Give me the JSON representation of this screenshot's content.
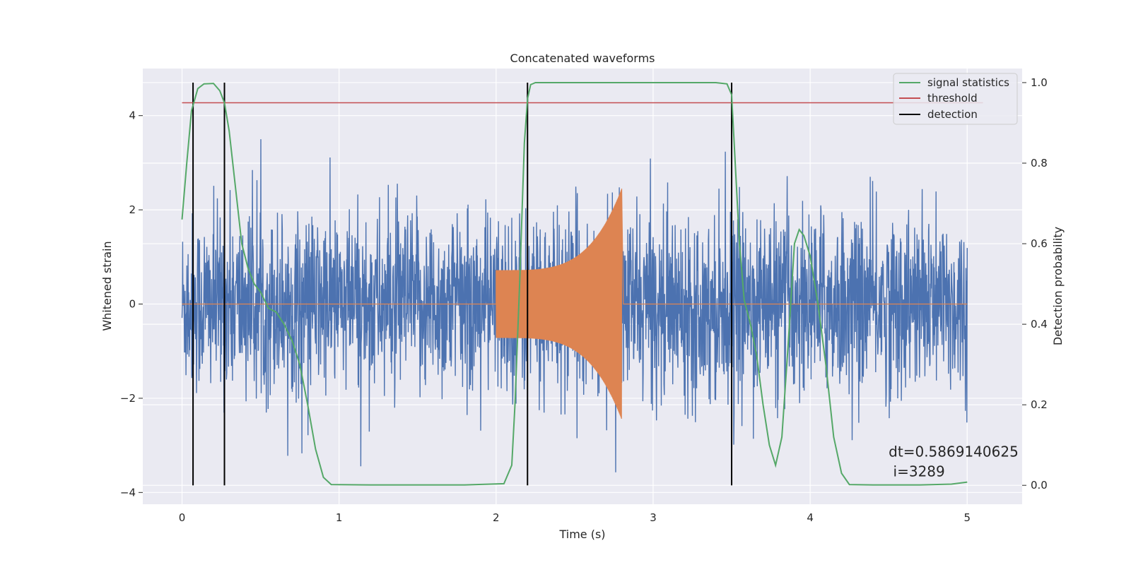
{
  "chart_data": {
    "type": "line",
    "title": "Concatenated waveforms",
    "xlabel": "Time (s)",
    "ylabel": "Whitened strain",
    "y2label": "Detection probability",
    "xlim": [
      -0.25,
      5.35
    ],
    "ylim": [
      -4.25,
      5.0
    ],
    "y2lim": [
      -0.047,
      1.035
    ],
    "x_ticks": [
      0,
      1,
      2,
      3,
      4,
      5
    ],
    "x_tick_labels": [
      "0",
      "1",
      "2",
      "3",
      "4",
      "5"
    ],
    "y_ticks": [
      -4,
      -2,
      0,
      2,
      4
    ],
    "y_tick_labels": [
      "−4",
      "−2",
      "0",
      "2",
      "4"
    ],
    "y2_ticks": [
      0.0,
      0.2,
      0.4,
      0.6,
      0.8,
      1.0
    ],
    "y2_tick_labels": [
      "0.0",
      "0.2",
      "0.4",
      "0.6",
      "0.8",
      "1.0"
    ],
    "grid": true,
    "legend_position": "top-right",
    "colors": {
      "background": "#eaeaf2",
      "grid": "#ffffff",
      "noise": "#4c72b0",
      "injection": "#dd8452",
      "statistics": "#55a868",
      "threshold": "#c44e52",
      "detection": "#000000"
    },
    "series": [
      {
        "name": "",
        "axis": "left",
        "kind": "noise",
        "x_range": [
          0,
          5
        ],
        "approx_envelope": [
          -2.3,
          2.5
        ],
        "approx_extremes": [
          -3.7,
          3.5
        ]
      },
      {
        "name": "",
        "axis": "left",
        "kind": "chirp",
        "x_range": [
          0,
          5
        ],
        "chirp_start": 2.0,
        "chirp_end": 2.8,
        "start_amplitude": 0.72,
        "peak_amplitude": 2.45,
        "peak_negative": -2.45
      },
      {
        "name": "signal statistics",
        "axis": "right",
        "x": [
          0.0,
          0.03,
          0.06,
          0.1,
          0.14,
          0.2,
          0.24,
          0.27,
          0.3,
          0.34,
          0.38,
          0.42,
          0.46,
          0.5,
          0.55,
          0.6,
          0.65,
          0.7,
          0.75,
          0.8,
          0.85,
          0.9,
          0.95,
          1.2,
          1.5,
          1.8,
          2.05,
          2.1,
          2.12,
          2.15,
          2.18,
          2.2,
          2.22,
          2.25,
          2.3,
          2.5,
          3.0,
          3.4,
          3.47,
          3.5,
          3.52,
          3.55,
          3.58,
          3.62,
          3.66,
          3.7,
          3.74,
          3.78,
          3.82,
          3.86,
          3.9,
          3.93,
          3.96,
          4.0,
          4.05,
          4.1,
          4.15,
          4.2,
          4.25,
          4.4,
          4.7,
          4.9,
          5.0
        ],
        "y": [
          0.66,
          0.8,
          0.93,
          0.985,
          0.997,
          0.998,
          0.98,
          0.95,
          0.88,
          0.74,
          0.6,
          0.54,
          0.5,
          0.48,
          0.44,
          0.43,
          0.4,
          0.36,
          0.3,
          0.2,
          0.09,
          0.02,
          0.002,
          0.001,
          0.001,
          0.001,
          0.004,
          0.05,
          0.2,
          0.5,
          0.85,
          0.96,
          0.995,
          1.0,
          1.0,
          1.0,
          1.0,
          1.0,
          0.997,
          0.97,
          0.82,
          0.6,
          0.46,
          0.4,
          0.32,
          0.2,
          0.1,
          0.05,
          0.12,
          0.35,
          0.6,
          0.635,
          0.62,
          0.57,
          0.45,
          0.3,
          0.12,
          0.03,
          0.002,
          0.001,
          0.001,
          0.003,
          0.008
        ]
      },
      {
        "name": "threshold",
        "axis": "right",
        "x": [
          0,
          5.1
        ],
        "y": [
          0.95,
          0.95
        ]
      },
      {
        "name": "detection",
        "axis": "right",
        "kind": "vlines",
        "x": [
          0.07,
          0.27,
          2.2,
          3.5
        ],
        "ymin": 0.0,
        "ymax": 1.0
      }
    ],
    "annotation": {
      "line1": "dt=0.5869140625",
      "line2": " i=3289",
      "x": 4.5,
      "y": -3.45
    }
  }
}
